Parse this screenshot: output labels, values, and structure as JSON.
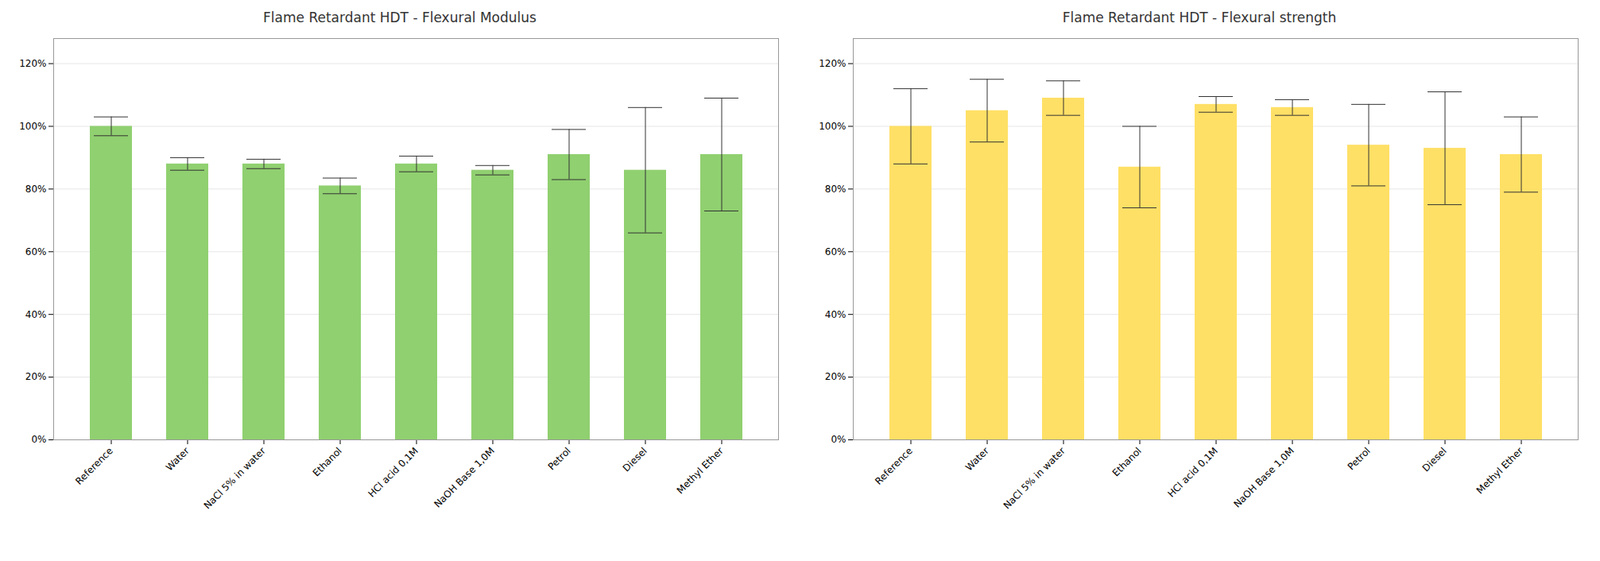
{
  "chart_data": [
    {
      "type": "bar",
      "title": "Flame Retardant HDT - Flexural Modulus",
      "categories": [
        "Reference",
        "Water",
        "NaCl 5% in water",
        "Ethanol",
        "HCl acid 0,1M",
        "NaOH Base 1,0M",
        "Petrol",
        "Diesel",
        "Methyl Ether"
      ],
      "values": [
        1.0,
        0.88,
        0.88,
        0.81,
        0.88,
        0.86,
        0.91,
        0.86,
        0.91
      ],
      "errors": [
        0.03,
        0.02,
        0.015,
        0.025,
        0.025,
        0.015,
        0.08,
        0.2,
        0.18
      ],
      "color": "#90D070",
      "ylim": [
        0,
        1.28
      ],
      "yticks": [
        {
          "value": 0,
          "label": "0%"
        },
        {
          "value": 0.2,
          "label": "20%"
        },
        {
          "value": 0.4,
          "label": "40%"
        },
        {
          "value": 0.6,
          "label": "60%"
        },
        {
          "value": 0.8,
          "label": "80%"
        },
        {
          "value": 1.0,
          "label": "100%"
        },
        {
          "value": 1.2,
          "label": "120%"
        }
      ],
      "grid": true
    },
    {
      "type": "bar",
      "title": "Flame Retardant HDT - Flexural strength",
      "categories": [
        "Reference",
        "Water",
        "NaCl 5% in water",
        "Ethanol",
        "HCl acid 0,1M",
        "NaOH Base 1,0M",
        "Petrol",
        "Diesel",
        "Methyl Ether"
      ],
      "values": [
        1.0,
        1.05,
        1.09,
        0.87,
        1.07,
        1.06,
        0.94,
        0.93,
        0.91
      ],
      "errors": [
        0.12,
        0.1,
        0.055,
        0.13,
        0.025,
        0.025,
        0.13,
        0.18,
        0.12
      ],
      "color": "#FFE066",
      "ylim": [
        0,
        1.28
      ],
      "yticks": [
        {
          "value": 0,
          "label": "0%"
        },
        {
          "value": 0.2,
          "label": "20%"
        },
        {
          "value": 0.4,
          "label": "40%"
        },
        {
          "value": 0.6,
          "label": "60%"
        },
        {
          "value": 0.8,
          "label": "80%"
        },
        {
          "value": 1.0,
          "label": "100%"
        },
        {
          "value": 1.2,
          "label": "120%"
        }
      ],
      "grid": true
    }
  ]
}
